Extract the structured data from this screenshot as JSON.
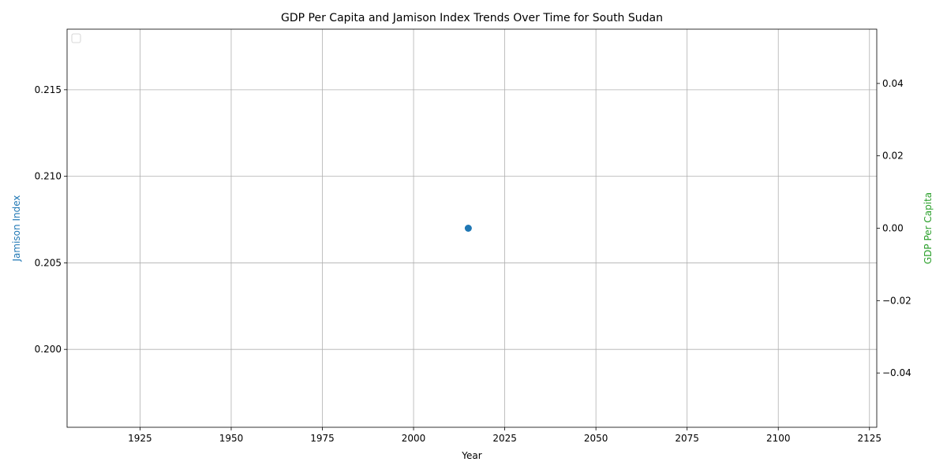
{
  "chart_data": {
    "type": "scatter",
    "title": "GDP Per Capita and Jamison Index Trends Over Time for South Sudan",
    "xlabel": "Year",
    "ylabel_left": "Jamison Index",
    "ylabel_right": "GDP Per Capita",
    "xlim": [
      1905,
      2127
    ],
    "ylim_left": [
      0.1955,
      0.2185
    ],
    "ylim_right": [
      -0.055,
      0.055
    ],
    "x_ticks": [
      1925,
      1950,
      1975,
      2000,
      2025,
      2050,
      2075,
      2100,
      2125
    ],
    "x_tick_labels": [
      "1925",
      "1950",
      "1975",
      "2000",
      "2025",
      "2050",
      "2075",
      "2100",
      "2125"
    ],
    "y_left_ticks": [
      0.2,
      0.205,
      0.21,
      0.215
    ],
    "y_left_tick_labels": [
      "0.200",
      "0.205",
      "0.210",
      "0.215"
    ],
    "y_right_ticks": [
      -0.04,
      -0.02,
      0.0,
      0.02,
      0.04
    ],
    "y_right_tick_labels": [
      "−0.04",
      "−0.02",
      "0.00",
      "0.02",
      "0.04"
    ],
    "grid": true,
    "legend": "top-left",
    "series": [
      {
        "axis": "left",
        "color": "#1f77b4",
        "x": [
          2015
        ],
        "y": [
          0.207
        ]
      }
    ],
    "left_label_color": "#1f77b4",
    "right_label_color": "#2ca02c"
  }
}
